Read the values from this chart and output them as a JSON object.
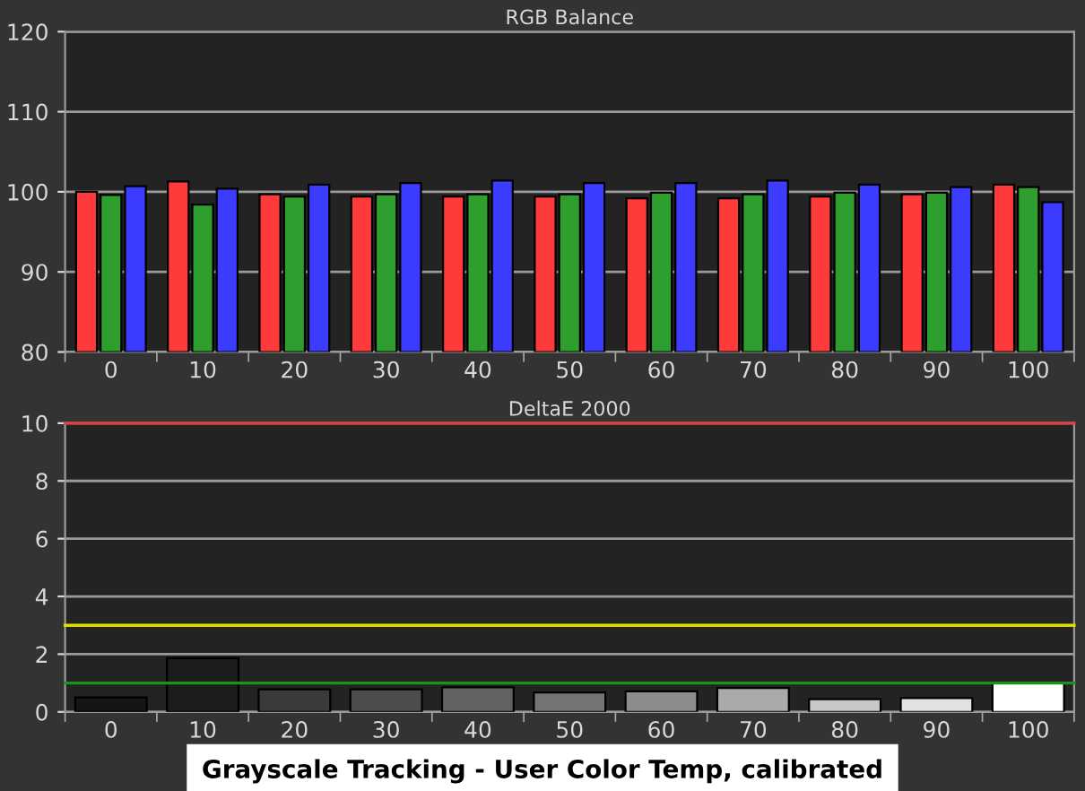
{
  "chart_data": [
    {
      "type": "bar",
      "title": "RGB Balance",
      "categories": [
        "0",
        "10",
        "20",
        "30",
        "40",
        "50",
        "60",
        "70",
        "80",
        "90",
        "100"
      ],
      "series": [
        {
          "color": "#ff3a3a",
          "values": [
            100.0,
            101.3,
            99.7,
            99.4,
            99.4,
            99.4,
            99.2,
            99.2,
            99.4,
            99.7,
            100.9
          ]
        },
        {
          "color": "#2e9e2e",
          "values": [
            99.6,
            98.4,
            99.4,
            99.7,
            99.7,
            99.7,
            99.9,
            99.7,
            99.9,
            99.9,
            100.6
          ]
        },
        {
          "color": "#3c3cff",
          "values": [
            100.7,
            100.4,
            100.9,
            101.1,
            101.4,
            101.1,
            101.1,
            101.4,
            100.9,
            100.6,
            98.7
          ]
        }
      ],
      "ylim": [
        80,
        120
      ],
      "yticks": [
        80,
        90,
        100,
        110,
        120
      ],
      "grid": "y",
      "legend": false
    },
    {
      "type": "bar",
      "title": "DeltaE 2000",
      "categories": [
        "0",
        "10",
        "20",
        "30",
        "40",
        "50",
        "60",
        "70",
        "80",
        "90",
        "100"
      ],
      "values": [
        0.5,
        1.86,
        0.78,
        0.78,
        0.85,
        0.67,
        0.71,
        0.83,
        0.44,
        0.48,
        1.0
      ],
      "colors": [
        "#151515",
        "#1c1c1c",
        "#3a3a3a",
        "#4c4c4c",
        "#626262",
        "#747474",
        "#8c8c8c",
        "#aaaaaa",
        "#c8c8c8",
        "#e2e2e2",
        "#ffffff"
      ],
      "ylim": [
        0,
        10
      ],
      "yticks": [
        0,
        2,
        4,
        6,
        8,
        10
      ],
      "grid": "y",
      "legend": false,
      "ref_lines": [
        {
          "axis": "y",
          "value": 10,
          "color": "#e04040"
        },
        {
          "axis": "y",
          "value": 3,
          "color": "#e0e000"
        },
        {
          "axis": "y",
          "value": 1,
          "color": "#1f8f1f"
        }
      ],
      "annotations": [
        "Grayscale Tracking - User Color Temp, calibrated"
      ]
    }
  ]
}
